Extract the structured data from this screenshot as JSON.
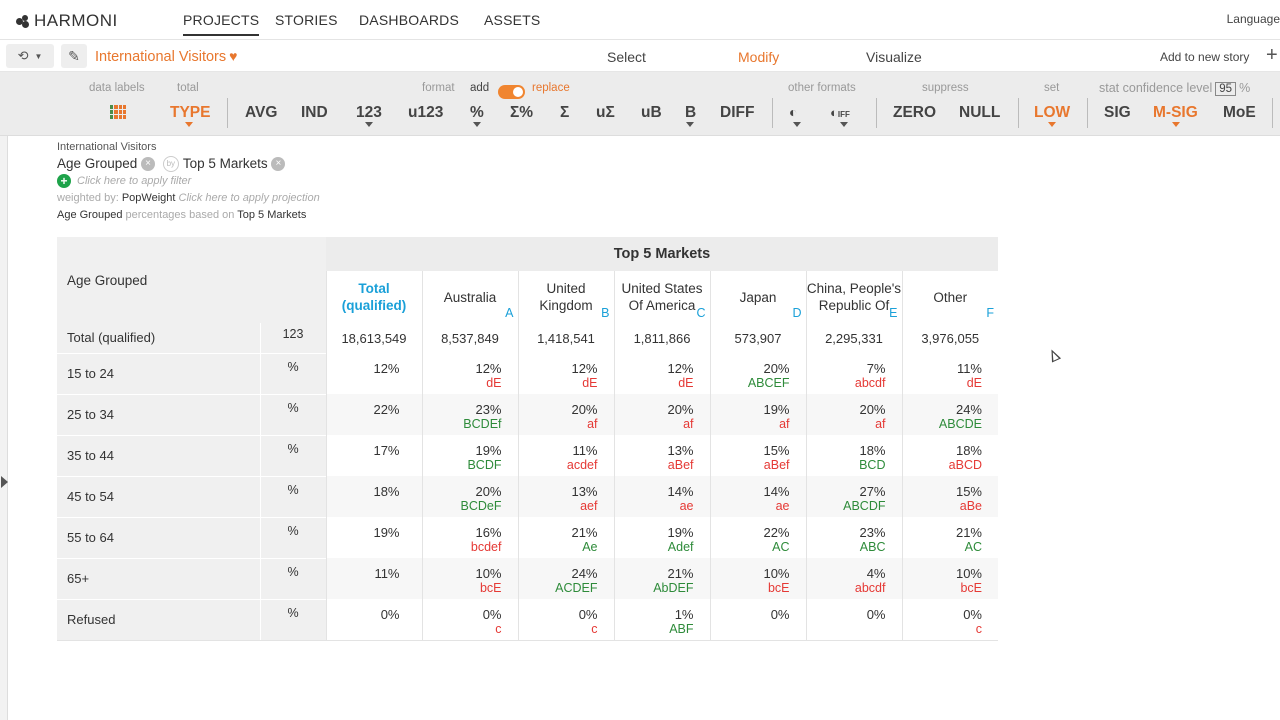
{
  "app": {
    "logo_text": "HARMONI",
    "nav": [
      "PROJECTS",
      "STORIES",
      "DASHBOARDS",
      "ASSETS"
    ],
    "language": "Language"
  },
  "subbar": {
    "title": "International Visitors",
    "modes": [
      "Select",
      "Modify",
      "Visualize"
    ],
    "active_mode": "Modify",
    "add_story": "Add to new story"
  },
  "toolbar": {
    "label_data_labels": "data labels",
    "label_total": "total",
    "label_format": "format",
    "label_add": "add",
    "label_replace": "replace",
    "label_other_formats": "other formats",
    "label_suppress": "suppress",
    "label_set": "set",
    "label_stat_confidence": "stat confidence level",
    "confidence_value": "95",
    "label_percent": "%",
    "btn_type": "TYPE",
    "btn_avg": "AVG",
    "btn_ind": "IND",
    "btn_123": "123",
    "btn_u123": "u123",
    "btn_pct": "%",
    "btn_sum_pct": "Σ%",
    "btn_sum": "Σ",
    "btn_usum": "uΣ",
    "btn_ub": "uB",
    "btn_b": "B",
    "btn_diff": "DIFF",
    "btn_iff": "IFF",
    "btn_zero": "ZERO",
    "btn_null": "NULL",
    "btn_low": "LOW",
    "btn_sig": "SIG",
    "btn_msig": "M-SIG",
    "btn_moe": "MoE"
  },
  "info": {
    "dataset": "International Visitors",
    "row_var": "Age Grouped",
    "col_var": "Top 5 Markets",
    "filter_placeholder": "Click here to apply filter",
    "weighted_label": "weighted by:",
    "weight": "PopWeight",
    "projection_placeholder": "Click here to apply projection",
    "pct_row": "Age Grouped",
    "pct_text": "percentages based on",
    "pct_col": "Top 5 Markets"
  },
  "table": {
    "corner_label": "Age Grouped",
    "banner": "Top 5 Markets",
    "columns": [
      {
        "name": "Total\n(qualified)",
        "letter": ""
      },
      {
        "name": "Australia",
        "letter": "A"
      },
      {
        "name": "United\nKingdom",
        "letter": "B"
      },
      {
        "name": "United States\nOf America",
        "letter": "C"
      },
      {
        "name": "Japan",
        "letter": "D"
      },
      {
        "name": "China, People's\nRepublic Of",
        "letter": "E"
      },
      {
        "name": "Other",
        "letter": "F"
      }
    ],
    "rows": [
      {
        "label": "Total (qualified)",
        "stat": "123",
        "cells": [
          {
            "v": "18,613,549",
            "s": "",
            "c": ""
          },
          {
            "v": "8,537,849",
            "s": "",
            "c": ""
          },
          {
            "v": "1,418,541",
            "s": "",
            "c": ""
          },
          {
            "v": "1,811,866",
            "s": "",
            "c": ""
          },
          {
            "v": "573,907",
            "s": "",
            "c": ""
          },
          {
            "v": "2,295,331",
            "s": "",
            "c": ""
          },
          {
            "v": "3,976,055",
            "s": "",
            "c": ""
          }
        ]
      },
      {
        "label": "15 to 24",
        "stat": "%",
        "cells": [
          {
            "v": "12%",
            "s": "",
            "c": ""
          },
          {
            "v": "12%",
            "s": "dE",
            "c": "red"
          },
          {
            "v": "12%",
            "s": "dE",
            "c": "red"
          },
          {
            "v": "12%",
            "s": "dE",
            "c": "red"
          },
          {
            "v": "20%",
            "s": "ABCEF",
            "c": "green"
          },
          {
            "v": "7%",
            "s": "abcdf",
            "c": "red"
          },
          {
            "v": "11%",
            "s": "dE",
            "c": "red"
          }
        ]
      },
      {
        "label": "25 to 34",
        "stat": "%",
        "cells": [
          {
            "v": "22%",
            "s": "",
            "c": ""
          },
          {
            "v": "23%",
            "s": "BCDEf",
            "c": "green"
          },
          {
            "v": "20%",
            "s": "af",
            "c": "red"
          },
          {
            "v": "20%",
            "s": "af",
            "c": "red"
          },
          {
            "v": "19%",
            "s": "af",
            "c": "red"
          },
          {
            "v": "20%",
            "s": "af",
            "c": "red"
          },
          {
            "v": "24%",
            "s": "ABCDE",
            "c": "green"
          }
        ]
      },
      {
        "label": "35 to 44",
        "stat": "%",
        "cells": [
          {
            "v": "17%",
            "s": "",
            "c": ""
          },
          {
            "v": "19%",
            "s": "BCDF",
            "c": "green"
          },
          {
            "v": "11%",
            "s": "acdef",
            "c": "red"
          },
          {
            "v": "13%",
            "s": "aBef",
            "c": "red"
          },
          {
            "v": "15%",
            "s": "aBef",
            "c": "red"
          },
          {
            "v": "18%",
            "s": "BCD",
            "c": "green"
          },
          {
            "v": "18%",
            "s": "aBCD",
            "c": "red"
          }
        ]
      },
      {
        "label": "45 to 54",
        "stat": "%",
        "cells": [
          {
            "v": "18%",
            "s": "",
            "c": ""
          },
          {
            "v": "20%",
            "s": "BCDeF",
            "c": "green"
          },
          {
            "v": "13%",
            "s": "aef",
            "c": "red"
          },
          {
            "v": "14%",
            "s": "ae",
            "c": "red"
          },
          {
            "v": "14%",
            "s": "ae",
            "c": "red"
          },
          {
            "v": "27%",
            "s": "ABCDF",
            "c": "green"
          },
          {
            "v": "15%",
            "s": "aBe",
            "c": "red"
          }
        ]
      },
      {
        "label": "55 to 64",
        "stat": "%",
        "cells": [
          {
            "v": "19%",
            "s": "",
            "c": ""
          },
          {
            "v": "16%",
            "s": "bcdef",
            "c": "red"
          },
          {
            "v": "21%",
            "s": "Ae",
            "c": "green"
          },
          {
            "v": "19%",
            "s": "Adef",
            "c": "green"
          },
          {
            "v": "22%",
            "s": "AC",
            "c": "green"
          },
          {
            "v": "23%",
            "s": "ABC",
            "c": "green"
          },
          {
            "v": "21%",
            "s": "AC",
            "c": "green"
          }
        ]
      },
      {
        "label": "65+",
        "stat": "%",
        "cells": [
          {
            "v": "11%",
            "s": "",
            "c": ""
          },
          {
            "v": "10%",
            "s": "bcE",
            "c": "red"
          },
          {
            "v": "24%",
            "s": "ACDEF",
            "c": "green"
          },
          {
            "v": "21%",
            "s": "AbDEF",
            "c": "green"
          },
          {
            "v": "10%",
            "s": "bcE",
            "c": "red"
          },
          {
            "v": "4%",
            "s": "abcdf",
            "c": "red"
          },
          {
            "v": "10%",
            "s": "bcE",
            "c": "red"
          }
        ]
      },
      {
        "label": "Refused",
        "stat": "%",
        "cells": [
          {
            "v": "0%",
            "s": "",
            "c": ""
          },
          {
            "v": "0%",
            "s": "c",
            "c": "red"
          },
          {
            "v": "0%",
            "s": "c",
            "c": "red"
          },
          {
            "v": "1%",
            "s": "ABF",
            "c": "green"
          },
          {
            "v": "0%",
            "s": "",
            "c": ""
          },
          {
            "v": "0%",
            "s": "",
            "c": ""
          },
          {
            "v": "0%",
            "s": "c",
            "c": "red"
          }
        ]
      }
    ]
  },
  "colors": {
    "accent": "#e8772e",
    "letter": "#1aa0d8",
    "sig_up": "#2e8b3a",
    "sig_down": "#e53935"
  }
}
